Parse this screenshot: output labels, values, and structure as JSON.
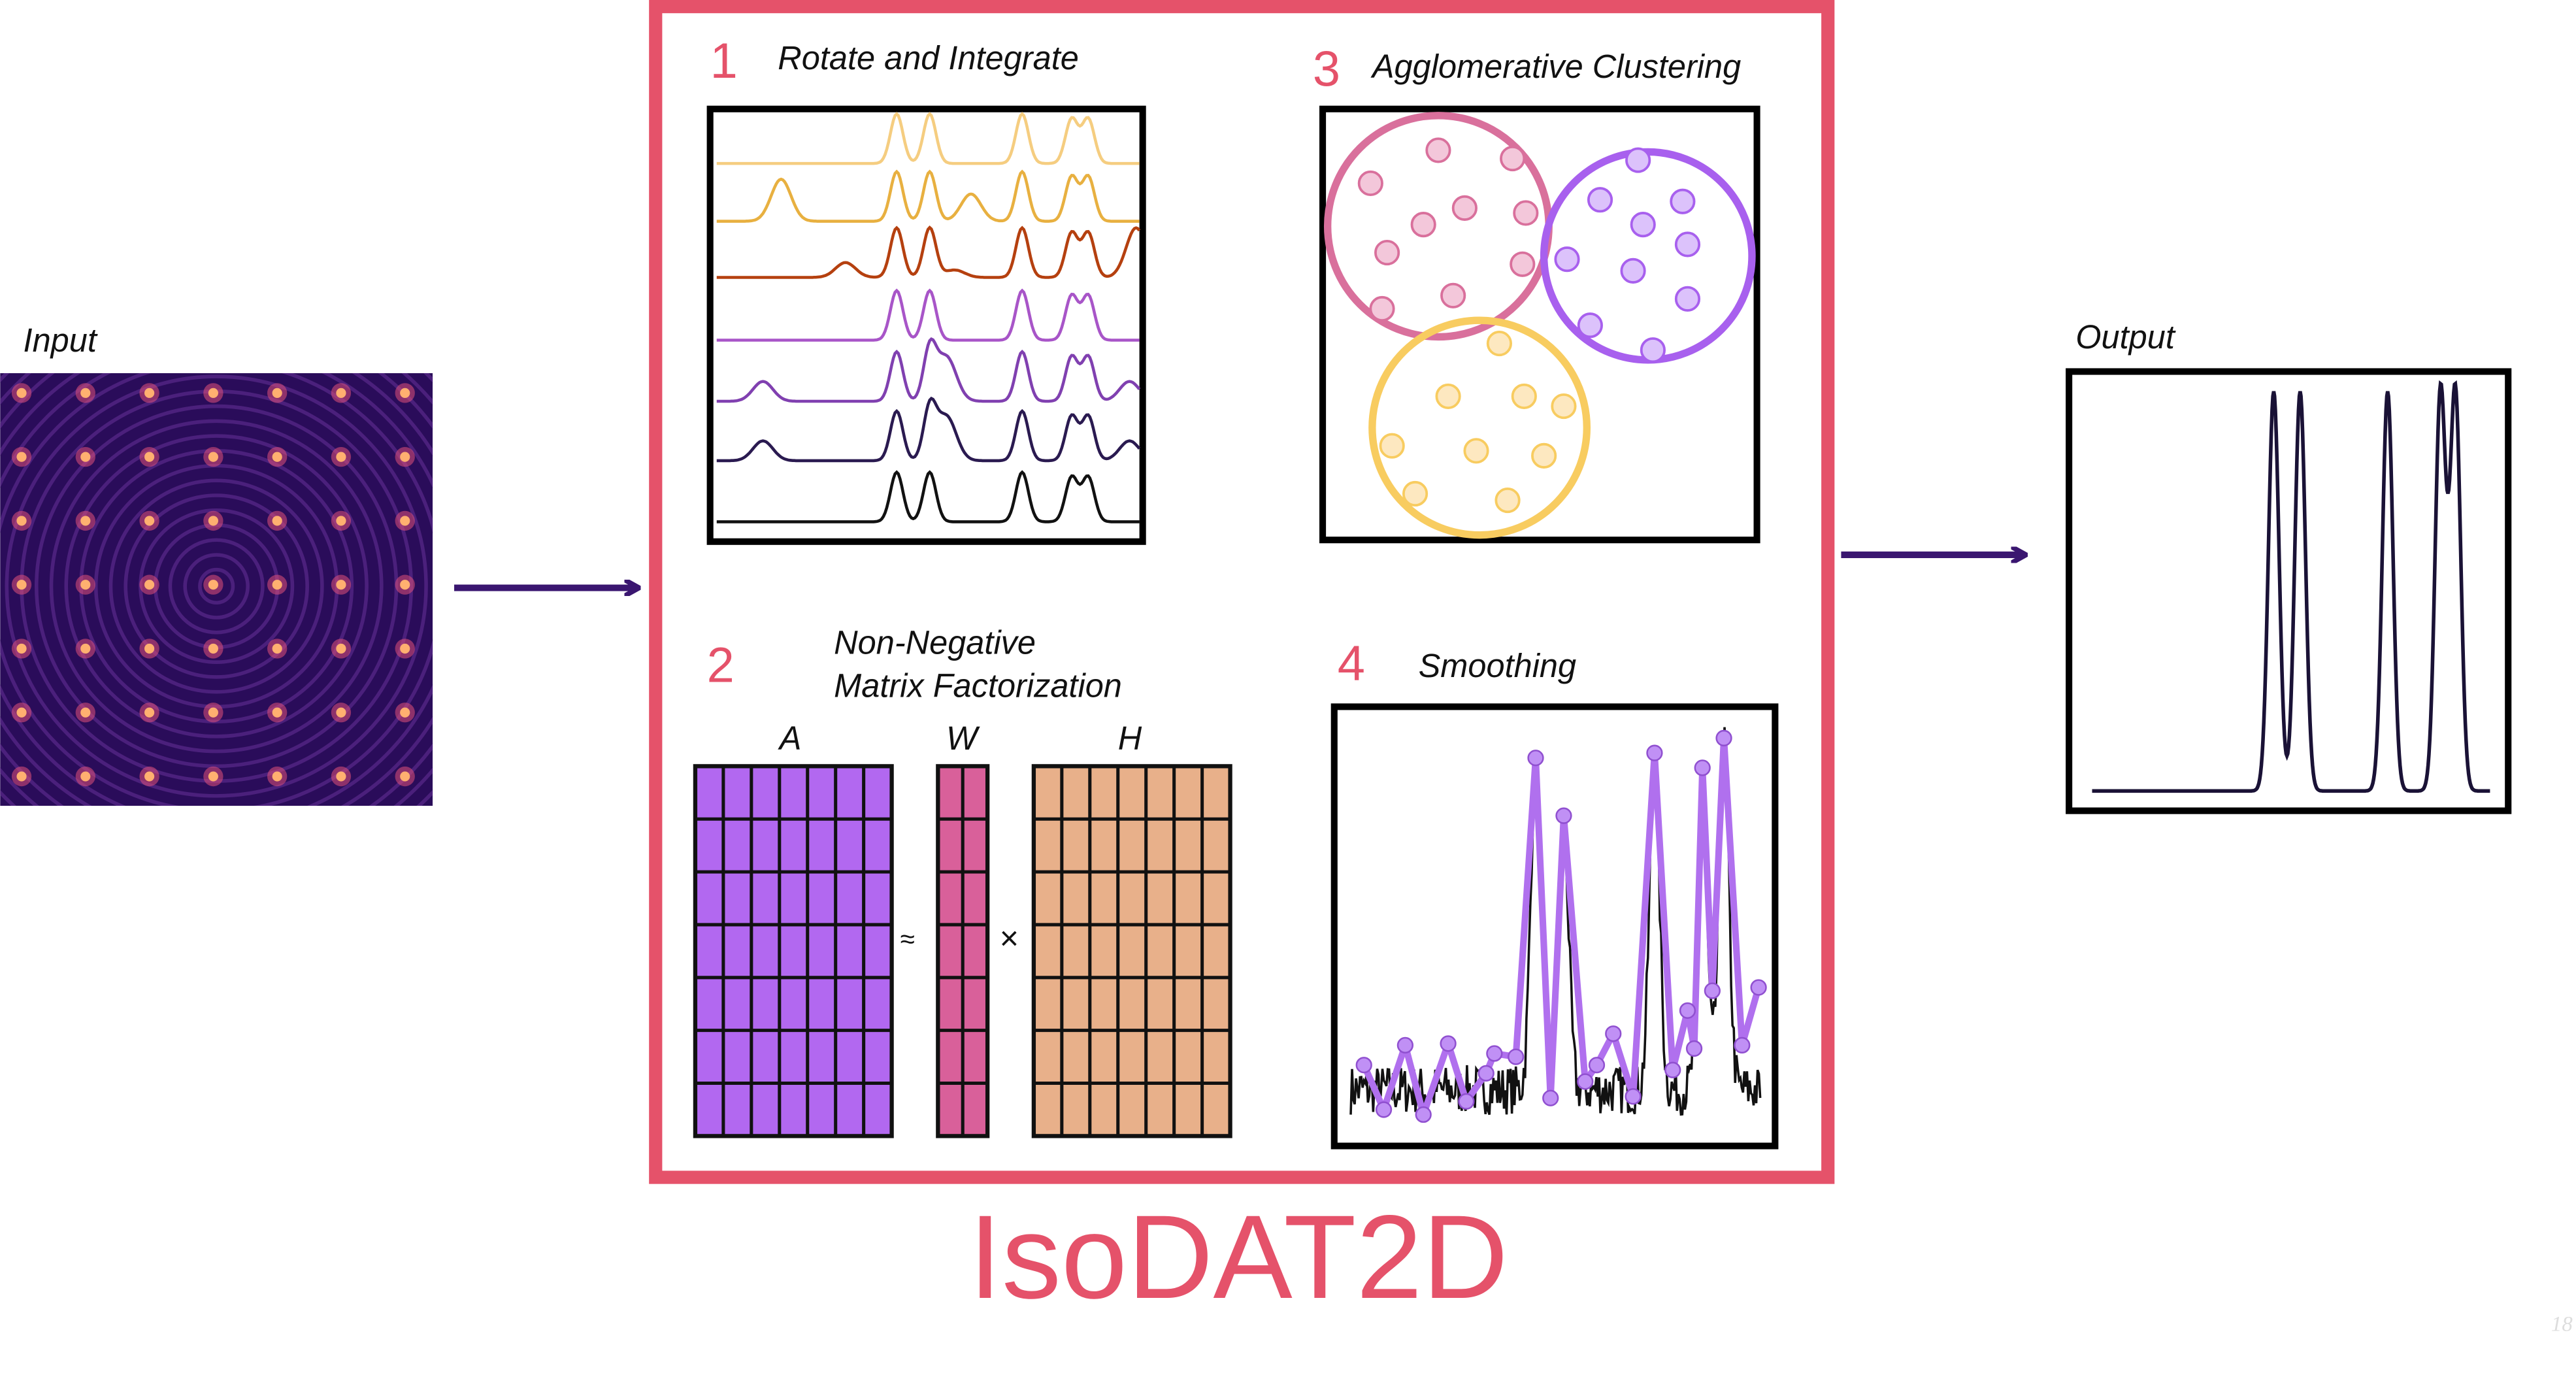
{
  "input_label": "Input",
  "output_label": "Output",
  "title": "IsoDAT2D",
  "page_number": "18",
  "steps": [
    {
      "number": "1",
      "label": "Rotate and Integrate"
    },
    {
      "number": "2",
      "label_line1": "Non-Negative",
      "label_line2": "Matrix Factorization"
    },
    {
      "number": "3",
      "label": "Agglomerative Clustering"
    },
    {
      "number": "4",
      "label": "Smoothing"
    }
  ],
  "nmf": {
    "a": "A",
    "w": "W",
    "h": "H",
    "approx": "≈",
    "times": "×"
  },
  "colors": {
    "accent": "#e5526a",
    "arrow": "#3a1670",
    "matrix_a": "#b268f0",
    "matrix_w": "#d9609a",
    "matrix_h": "#e8b08a",
    "cluster_pink": "#d9709c",
    "cluster_purple": "#a860ee",
    "cluster_yellow": "#f8cc60",
    "traces": [
      "#f5cd80",
      "#e8b040",
      "#b5400f",
      "#a855c8",
      "#8040b0",
      "#2a1a50",
      "#111111"
    ]
  }
}
